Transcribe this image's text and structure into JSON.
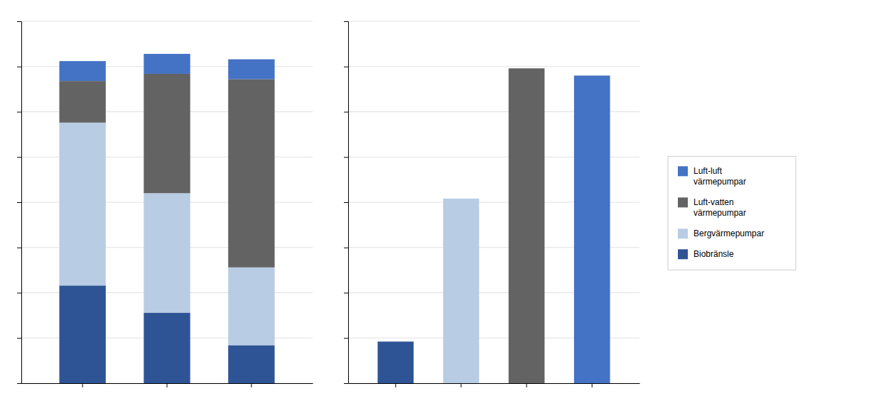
{
  "chart_data": [
    {
      "type": "bar",
      "stacked": true,
      "categories": [
        null,
        null,
        null
      ],
      "series": [
        {
          "name": "Biobränsle",
          "color": "#2F5496",
          "values": [
            0.27,
            0.195,
            0.105
          ]
        },
        {
          "name": "Bergvärmepumpar",
          "color": "#B8CCE4",
          "values": [
            0.45,
            0.33,
            0.215
          ]
        },
        {
          "name": "Luft-vatten\nvärmepumpar",
          "color": "#636363",
          "values": [
            0.115,
            0.33,
            0.52
          ]
        },
        {
          "name": "Luft-luft\nvärmepumpar",
          "color": "#4472C4",
          "values": [
            0.055,
            0.055,
            0.055
          ]
        }
      ],
      "ylim": [
        0,
        1.0
      ],
      "yticks": [
        0,
        0.125,
        0.25,
        0.375,
        0.5,
        0.625,
        0.75,
        0.875,
        1.0
      ],
      "grid": true,
      "tick_labels": false,
      "legend": "right"
    },
    {
      "type": "bar",
      "categories": [
        null,
        null,
        null,
        null
      ],
      "values": [
        0.115,
        0.51,
        0.87,
        0.85
      ],
      "colors": [
        "#2F5496",
        "#B8CCE4",
        "#636363",
        "#4472C4"
      ],
      "ylim": [
        0,
        1.0
      ],
      "yticks": [
        0,
        0.125,
        0.25,
        0.375,
        0.5,
        0.625,
        0.75,
        0.875,
        1.0
      ],
      "grid": true,
      "tick_labels": false
    }
  ]
}
